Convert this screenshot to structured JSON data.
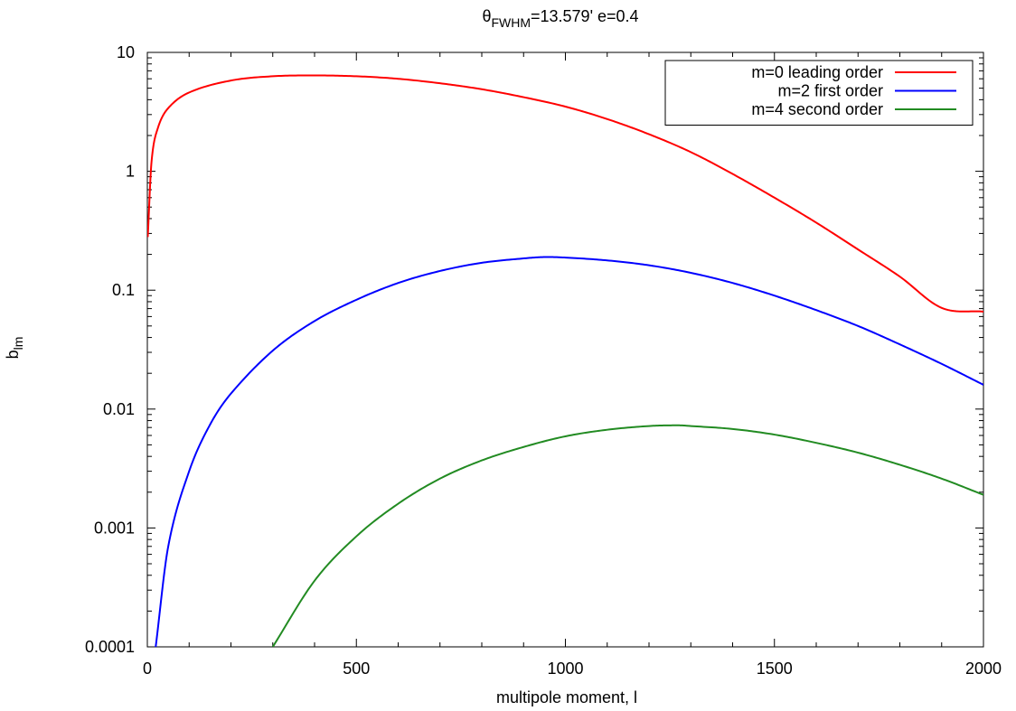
{
  "chart_data": {
    "type": "line",
    "title_parts": {
      "symbol": "θ",
      "subscript": "FWHM",
      "rest": "=13.579'   e=0.4"
    },
    "xlabel": "multipole moment, l",
    "ylabel_parts": {
      "base": "b",
      "subscript": "lm"
    },
    "xlim": [
      0,
      2000
    ],
    "ylim": [
      0.0001,
      10
    ],
    "yscale": "log",
    "x_ticks": [
      {
        "value": 0,
        "label": "0"
      },
      {
        "value": 500,
        "label": "500"
      },
      {
        "value": 1000,
        "label": "1000"
      },
      {
        "value": 1500,
        "label": "1500"
      },
      {
        "value": 2000,
        "label": "2000"
      }
    ],
    "y_ticks": [
      {
        "value": 0.0001,
        "label": "0.0001"
      },
      {
        "value": 0.001,
        "label": "0.001"
      },
      {
        "value": 0.01,
        "label": "0.01"
      },
      {
        "value": 0.1,
        "label": "0.1"
      },
      {
        "value": 1,
        "label": "1"
      },
      {
        "value": 10,
        "label": "10"
      }
    ],
    "legend_position": "top-right",
    "grid": false,
    "series": [
      {
        "name": "m=0 leading order",
        "color": "#ff0000",
        "x": [
          1,
          10,
          25,
          50,
          100,
          200,
          300,
          400,
          500,
          600,
          700,
          800,
          900,
          1000,
          1100,
          1200,
          1300,
          1400,
          1500,
          1600,
          1700,
          1800,
          1900,
          2000
        ],
        "y": [
          0.28,
          1.2,
          2.3,
          3.4,
          4.6,
          5.8,
          6.3,
          6.4,
          6.3,
          6.0,
          5.5,
          4.9,
          4.2,
          3.5,
          2.75,
          2.05,
          1.45,
          0.95,
          0.6,
          0.37,
          0.22,
          0.13,
          0.071,
          0.066
        ]
      },
      {
        "name": "m=2 first order",
        "color": "#0000ff",
        "x": [
          20,
          50,
          100,
          150,
          200,
          300,
          400,
          500,
          600,
          700,
          800,
          900,
          950,
          1000,
          1100,
          1200,
          1300,
          1400,
          1500,
          1600,
          1700,
          1800,
          1900,
          2000
        ],
        "y": [
          0.0001,
          0.0007,
          0.003,
          0.0074,
          0.0135,
          0.031,
          0.055,
          0.083,
          0.115,
          0.145,
          0.17,
          0.185,
          0.19,
          0.188,
          0.178,
          0.162,
          0.14,
          0.115,
          0.09,
          0.068,
          0.05,
          0.035,
          0.024,
          0.016
        ]
      },
      {
        "name": "m=4 second order",
        "color": "#228b22",
        "x": [
          300,
          400,
          500,
          600,
          700,
          800,
          900,
          1000,
          1100,
          1200,
          1270,
          1300,
          1400,
          1500,
          1600,
          1700,
          1800,
          1900,
          2000
        ],
        "y": [
          0.0001,
          0.00036,
          0.00085,
          0.0016,
          0.0026,
          0.0037,
          0.0048,
          0.0059,
          0.0067,
          0.0072,
          0.0073,
          0.0072,
          0.0068,
          0.0061,
          0.0052,
          0.0043,
          0.0034,
          0.0026,
          0.0019
        ]
      }
    ]
  }
}
